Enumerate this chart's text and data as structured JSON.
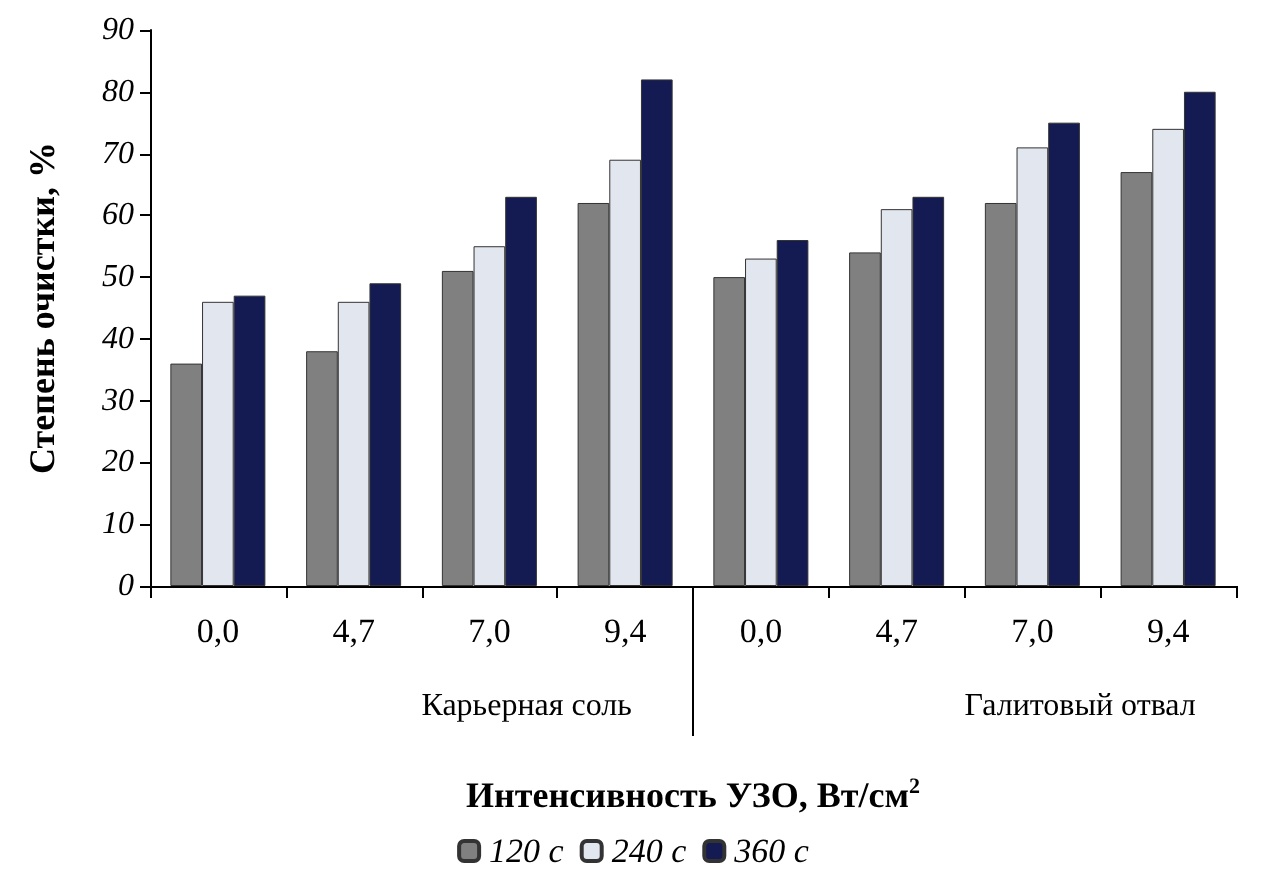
{
  "chart_data": {
    "type": "bar",
    "xlabel": "Интенсивность УЗО, Вт/см$^{2}$",
    "ylabel": "Степень очистки, %",
    "categories": [
      "0,0",
      "4,7",
      "7,0",
      "9,4",
      "0,0",
      "4,7",
      "7,0",
      "9,4"
    ],
    "series": [
      {
        "name": "120 с",
        "color": "#808080",
        "values": [
          36,
          38,
          51,
          62,
          50,
          54,
          62,
          67
        ]
      },
      {
        "name": "240 с",
        "color": "#e2e6ee",
        "values": [
          46,
          46,
          55,
          69,
          53,
          61,
          71,
          74
        ]
      },
      {
        "name": "360 с",
        "color": "#141a52",
        "values": [
          47,
          49,
          63,
          82,
          56,
          63,
          75,
          80
        ]
      }
    ],
    "annotations": [
      "Карьерная соль",
      "Галитовый отвал"
    ],
    "ylim": [
      0,
      90
    ],
    "yticks": [
      0,
      10,
      20,
      30,
      40,
      50,
      60,
      70,
      80,
      90
    ],
    "grid": false,
    "legend": "bottom"
  }
}
